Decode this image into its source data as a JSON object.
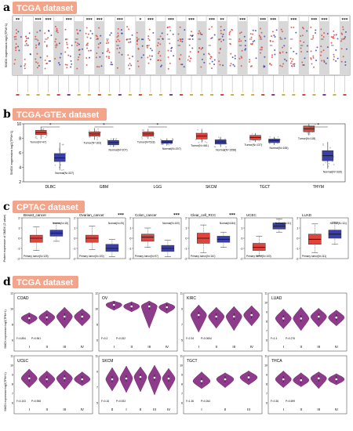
{
  "panels": {
    "a": {
      "letter": "a",
      "dataset": "TCGA dataset",
      "ylabel": "SMOX expression log2(TPM+1)"
    },
    "b": {
      "letter": "b",
      "dataset": "TCGA-GTEx dataset",
      "ylabel": "SMOX expression log2(TPM+1)"
    },
    "c": {
      "letter": "c",
      "dataset": "CPTAC dataset",
      "ylabel": "Protein expression of SMOX (Z-value)"
    },
    "d": {
      "letter": "d",
      "dataset": "TCGA dataset",
      "ylabel": "SMOX expression log2(TPM+1)"
    }
  },
  "colors": {
    "tumor": "#e0443c",
    "normal": "#3b3fa8",
    "violin": "#8e3b8c",
    "badge": "#f2a58a",
    "header_bg": "#c9c9c9",
    "shade": "#d8d8d8"
  },
  "chart_data": [
    {
      "type": "scatter",
      "panel": "a",
      "significance_marks": [
        "**",
        "***",
        "***",
        "***",
        "***",
        "***",
        "***",
        "*",
        "***",
        "***",
        "***",
        "***",
        "**",
        "***",
        "***",
        "***",
        "***",
        "***",
        "***",
        "***"
      ],
      "group_count": 33
    },
    {
      "type": "box",
      "panel": "b",
      "ylim": [
        2,
        10
      ],
      "yticks": [
        2,
        4,
        6,
        8,
        10
      ],
      "categories": [
        "DLBC",
        "GBM",
        "LGG",
        "SKCM",
        "TGCT",
        "THYM"
      ],
      "tumor_labels": [
        "Tumor(N=47)",
        "Tumor(N=163)",
        "Tumor(N=518)",
        "Tumor(N=461)",
        "Tumor(N=137)",
        "Tumor(N=118)"
      ],
      "normal_labels": [
        "Normal(N=337)",
        "Normal(N=207)",
        "Normal(N=207)",
        "Normal(N=1558)",
        "Normal(N=165)",
        "Normal(N=339)"
      ],
      "significance": [
        "*",
        "*",
        "*",
        "",
        "",
        "*"
      ],
      "series": [
        {
          "name": "Tumor",
          "values": [
            [
              7.9,
              8.5,
              8.8,
              9.1,
              9.6
            ],
            [
              7.8,
              8.3,
              8.6,
              8.9,
              9.4
            ],
            [
              7.9,
              8.3,
              8.6,
              8.9,
              9.3
            ],
            [
              7.4,
              7.9,
              8.3,
              8.7,
              9.3
            ],
            [
              7.5,
              7.8,
              8.1,
              8.4,
              8.7
            ],
            [
              8.4,
              8.9,
              9.3,
              9.7,
              10.0
            ]
          ]
        },
        {
          "name": "Normal",
          "values": [
            [
              3.6,
              4.8,
              5.3,
              5.9,
              7.4
            ],
            [
              6.8,
              7.1,
              7.4,
              7.7,
              8.0
            ],
            [
              7.0,
              7.3,
              7.5,
              7.7,
              8.0
            ],
            [
              6.8,
              7.2,
              7.5,
              7.8,
              8.2
            ],
            [
              7.1,
              7.4,
              7.7,
              7.9,
              8.2
            ],
            [
              3.8,
              4.9,
              5.6,
              6.3,
              7.5
            ]
          ]
        }
      ]
    },
    {
      "type": "box",
      "panel": "c",
      "subplots": [
        {
          "title": "Breast_cancer",
          "sig": "",
          "ylim": [
            -2,
            2
          ],
          "yticks": [
            -2,
            -1,
            0,
            1,
            2
          ],
          "tumor_label": "Primary tumor(N=125)",
          "normal_label": "Normal(N=18)",
          "tumor": [
            -1.2,
            -0.4,
            0.0,
            0.3,
            1.1
          ],
          "normal": [
            -0.3,
            0.2,
            0.5,
            0.8,
            1.5
          ]
        },
        {
          "title": "Ovarian_cancer",
          "sig": "***",
          "ylim": [
            -2,
            2
          ],
          "yticks": [
            -2,
            -1,
            0,
            1,
            2
          ],
          "tumor_label": "Primary tumor(N=100)",
          "normal_label": "Normal(N=25)",
          "tumor": [
            -1.1,
            -0.4,
            0.0,
            0.3,
            1.2
          ],
          "normal": [
            -1.8,
            -1.3,
            -1.0,
            -0.6,
            -0.1
          ]
        },
        {
          "title": "Colon_cancer",
          "sig": "***",
          "ylim": [
            -2,
            2
          ],
          "yticks": [
            -2,
            -1,
            0,
            1,
            2
          ],
          "tumor_label": "Primary tumor(N=97)",
          "normal_label": "Normal(N=100)",
          "tumor": [
            -0.9,
            -0.3,
            0.1,
            0.4,
            1.0
          ],
          "normal": [
            -1.8,
            -1.3,
            -1.0,
            -0.7,
            -0.2
          ]
        },
        {
          "title": "Clear_cell_RCC",
          "sig": "***",
          "ylim": [
            -2,
            2
          ],
          "yticks": [
            -2,
            -1,
            0,
            1,
            2
          ],
          "tumor_label": "Primary tumor(N=110)",
          "normal_label": "Normal(N=84)",
          "tumor": [
            -1.4,
            -0.5,
            0.0,
            0.5,
            1.3
          ],
          "normal": [
            -0.9,
            -0.4,
            -0.1,
            0.2,
            0.6
          ]
        },
        {
          "title": "UCEC",
          "sig": "",
          "ylim": [
            -2,
            2
          ],
          "yticks": [
            -2,
            -1,
            0,
            1,
            2
          ],
          "tumor_label": "Primary tumor(N=100)",
          "normal_label": "Normal(N=31)",
          "tumor": [
            -1.7,
            -1.2,
            -0.9,
            -0.5,
            0.2
          ],
          "normal": [
            0.6,
            0.9,
            1.2,
            1.5,
            1.9
          ]
        },
        {
          "title": "LUAD",
          "sig": "",
          "ylim": [
            -2,
            2
          ],
          "yticks": [
            -2,
            -1,
            0,
            1,
            2
          ],
          "tumor_label": "Primary tumor(N=111)",
          "normal_label": "Normal(N=111)",
          "tumor": [
            -1.4,
            -0.6,
            -0.1,
            0.4,
            1.4
          ],
          "normal": [
            -0.6,
            0.0,
            0.4,
            0.8,
            1.6
          ]
        }
      ]
    },
    {
      "type": "violin",
      "panel": "d",
      "subplots": [
        {
          "title": "COAD",
          "stages": [
            "I",
            "II",
            "III",
            "IV"
          ],
          "p": [
            "F=0.894",
            "P=0.961"
          ],
          "medians": [
            8.8,
            8.9,
            9.0,
            9.0
          ],
          "ranges": [
            [
              8.0,
              9.5
            ],
            [
              7.8,
              9.8
            ],
            [
              7.5,
              10.2
            ],
            [
              7.8,
              10.0
            ]
          ]
        },
        {
          "title": "OV",
          "stages": [
            "I",
            "II",
            "III",
            "IV"
          ],
          "p": [
            "F=0.2",
            "P=0.152"
          ],
          "medians": [
            10.5,
            10.3,
            10.3,
            10.2
          ],
          "ranges": [
            [
              9.8,
              11.0
            ],
            [
              9.6,
              10.9
            ],
            [
              7.5,
              11.0
            ],
            [
              9.4,
              10.8
            ]
          ]
        },
        {
          "title": "KIRC",
          "stages": [
            "I",
            "II",
            "III",
            "IV"
          ],
          "p": [
            "F=2.34",
            "P=0.0654"
          ],
          "medians": [
            8.2,
            8.0,
            8.0,
            8.2
          ],
          "ranges": [
            [
              6.0,
              9.5
            ],
            [
              6.5,
              9.2
            ],
            [
              6.2,
              9.3
            ],
            [
              6.8,
              9.4
            ]
          ]
        },
        {
          "title": "LUAD",
          "stages": [
            "I",
            "II",
            "III",
            "IV"
          ],
          "p": [
            "F=1.3",
            "P=0.276"
          ],
          "medians": [
            8.3,
            8.3,
            8.5,
            8.4
          ],
          "ranges": [
            [
              7.2,
              9.3
            ],
            [
              7.0,
              9.5
            ],
            [
              7.4,
              9.4
            ],
            [
              7.5,
              9.2
            ]
          ]
        },
        {
          "title": "UCEC",
          "stages": [
            "I",
            "II",
            "III",
            "IV"
          ],
          "p": [
            "F=0.103",
            "P=0.958"
          ],
          "medians": [
            8.6,
            8.5,
            8.6,
            8.5
          ],
          "ranges": [
            [
              7.6,
              9.6
            ],
            [
              7.5,
              9.4
            ],
            [
              7.4,
              9.5
            ],
            [
              7.8,
              9.3
            ]
          ]
        },
        {
          "title": "SKCM",
          "stages": [
            "0",
            "I",
            "II",
            "III",
            "IV"
          ],
          "p": [
            "F=0.16",
            "P=0.933"
          ],
          "medians": [
            8.0,
            8.1,
            8.3,
            8.2,
            8.1
          ],
          "ranges": [
            [
              6.5,
              9.5
            ],
            [
              6.3,
              9.7
            ],
            [
              6.4,
              9.6
            ],
            [
              6.0,
              9.8
            ],
            [
              6.5,
              9.4
            ]
          ]
        },
        {
          "title": "TGCT",
          "stages": [
            "I",
            "II",
            "III"
          ],
          "p": [
            "F=1.36",
            "P=0.264"
          ],
          "medians": [
            8.3,
            8.5,
            8.7
          ],
          "ranges": [
            [
              7.5,
              9.3
            ],
            [
              7.6,
              9.2
            ],
            [
              7.9,
              9.4
            ]
          ]
        },
        {
          "title": "THCA",
          "stages": [
            "I",
            "II",
            "III",
            "IV"
          ],
          "p": [
            "F=0.36",
            "P=0.699"
          ],
          "medians": [
            8.5,
            8.4,
            8.6,
            8.5
          ],
          "ranges": [
            [
              7.6,
              9.4
            ],
            [
              7.7,
              9.2
            ],
            [
              7.5,
              9.3
            ],
            [
              7.9,
              9.1
            ]
          ]
        }
      ]
    }
  ]
}
